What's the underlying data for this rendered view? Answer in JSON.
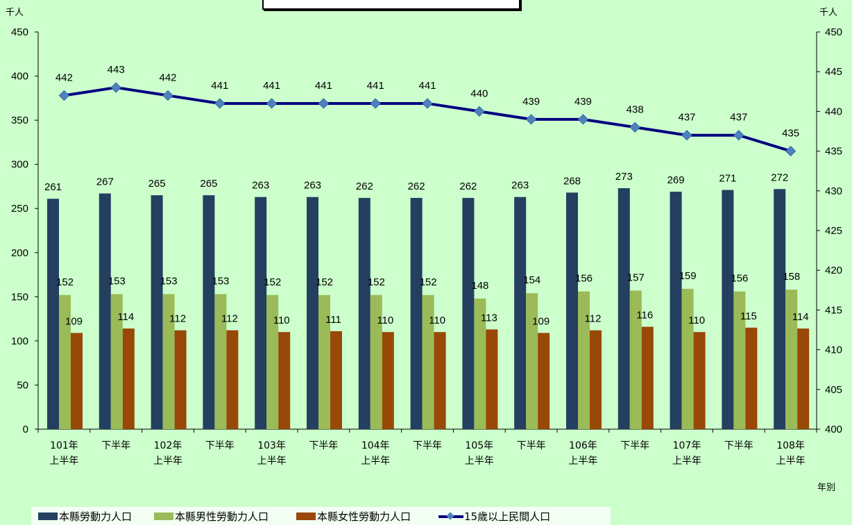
{
  "chart_data": {
    "type": "bar",
    "categories": [
      [
        "101年",
        "上半年"
      ],
      [
        "下半年"
      ],
      [
        "102年",
        "上半年"
      ],
      [
        "下半年"
      ],
      [
        "103年",
        "上半年"
      ],
      [
        "下半年"
      ],
      [
        "104年",
        "上半年"
      ],
      [
        "下半年"
      ],
      [
        "105年",
        "上半年"
      ],
      [
        "下半年"
      ],
      [
        "106年",
        "上半年"
      ],
      [
        "下半年"
      ],
      [
        "107年",
        "上半年"
      ],
      [
        "下半年"
      ],
      [
        "108年",
        "上半年"
      ]
    ],
    "series": [
      {
        "name": "本縣勞動力人口",
        "type": "bar",
        "axis": "left",
        "color": "#243f60",
        "values": [
          261,
          267,
          265,
          265,
          263,
          263,
          262,
          262,
          262,
          263,
          268,
          273,
          269,
          271,
          272
        ]
      },
      {
        "name": "本縣男性勞動力人口",
        "type": "bar",
        "axis": "left",
        "color": "#9bbb59",
        "values": [
          152,
          153,
          153,
          153,
          152,
          152,
          152,
          152,
          148,
          154,
          156,
          157,
          159,
          156,
          158
        ]
      },
      {
        "name": "本縣女性勞動力人口",
        "type": "bar",
        "axis": "left",
        "color": "#984807",
        "values": [
          109,
          114,
          112,
          112,
          110,
          111,
          110,
          110,
          113,
          109,
          112,
          116,
          110,
          115,
          114
        ]
      },
      {
        "name": "15歲以上民間人口",
        "type": "line",
        "axis": "right",
        "color": "#000080",
        "marker_color": "#4f81bd",
        "values": [
          442,
          443,
          442,
          441,
          441,
          441,
          441,
          441,
          440,
          439,
          439,
          438,
          437,
          437,
          435
        ]
      }
    ],
    "y_left": {
      "unit": "千人",
      "range": [
        0,
        450
      ],
      "ticks": [
        0,
        50,
        100,
        150,
        200,
        250,
        300,
        350,
        400,
        450
      ]
    },
    "y_right": {
      "unit": "千人",
      "range": [
        400,
        450
      ],
      "ticks": [
        400,
        405,
        410,
        415,
        420,
        425,
        430,
        435,
        440,
        445,
        450
      ]
    },
    "xlabel": "年別",
    "grid": false,
    "legend_position": "bottom-left",
    "data_labels": true
  }
}
